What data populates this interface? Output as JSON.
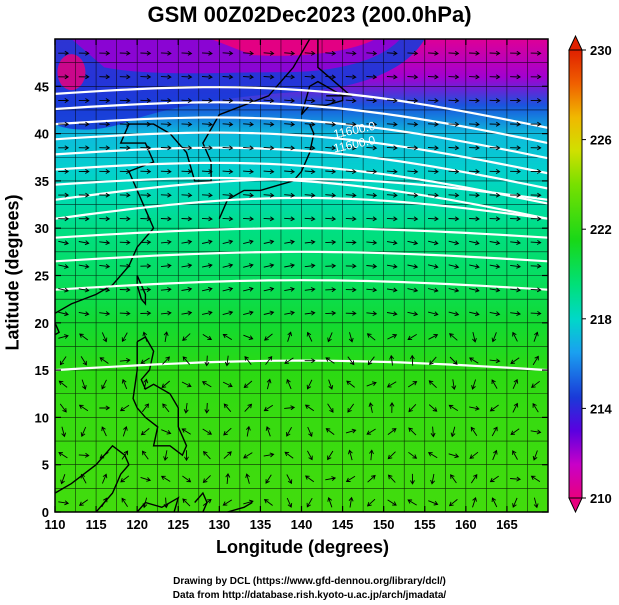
{
  "chart_data": {
    "type": "heatmap",
    "title": "GSM 00Z02Dec2023 (200.0hPa)",
    "xlabel": "Longitude (degrees)",
    "ylabel": "Latitude  (degrees)",
    "xlim": [
      110,
      170
    ],
    "ylim": [
      0,
      50
    ],
    "x_ticks": [
      "110",
      "115",
      "120",
      "125",
      "130",
      "135",
      "140",
      "145",
      "150",
      "155",
      "160",
      "165"
    ],
    "y_ticks": [
      "0",
      "5",
      "10",
      "15",
      "20",
      "25",
      "30",
      "35",
      "40",
      "45"
    ],
    "colorbar": {
      "min": 210,
      "max": 230,
      "ticks": [
        "210",
        "214",
        "218",
        "222",
        "226",
        "230"
      ],
      "stops": [
        {
          "v": 210,
          "c": "#e8007e"
        },
        {
          "v": 211.5,
          "c": "#c800c8"
        },
        {
          "v": 213,
          "c": "#5a00e0"
        },
        {
          "v": 214.5,
          "c": "#1a3ad8"
        },
        {
          "v": 216.5,
          "c": "#1aa0f0"
        },
        {
          "v": 218,
          "c": "#00d8c8"
        },
        {
          "v": 219.5,
          "c": "#00e07a"
        },
        {
          "v": 221.5,
          "c": "#18d818"
        },
        {
          "v": 224,
          "c": "#78e000"
        },
        {
          "v": 225.5,
          "c": "#d0e000"
        },
        {
          "v": 227,
          "c": "#f0b800"
        },
        {
          "v": 228.5,
          "c": "#f06000"
        },
        {
          "v": 230,
          "c": "#e02000"
        }
      ]
    },
    "temperature_bands_by_latitude": [
      {
        "lat": 0,
        "value": 222.6
      },
      {
        "lat": 10,
        "value": 222.3
      },
      {
        "lat": 15,
        "value": 222.0
      },
      {
        "lat": 20,
        "value": 221.0
      },
      {
        "lat": 25,
        "value": 220.0
      },
      {
        "lat": 30,
        "value": 219.3
      },
      {
        "lat": 33,
        "value": 218.5
      },
      {
        "lat": 36,
        "value": 217.8
      },
      {
        "lat": 40,
        "value": 217.2
      },
      {
        "lat": 43,
        "value": 215.0
      },
      {
        "lat": 46,
        "value": 212.0
      },
      {
        "lat": 50,
        "value": 210.5
      }
    ],
    "contour_labels": [
      "11600.0",
      "11600.0"
    ],
    "credits": [
      "Drawing by DCL (https://www.gfd-dennou.org/library/dcl/)",
      "Data from http://database.rish.kyoto-u.ac.jp/arch/jmadata/"
    ]
  }
}
